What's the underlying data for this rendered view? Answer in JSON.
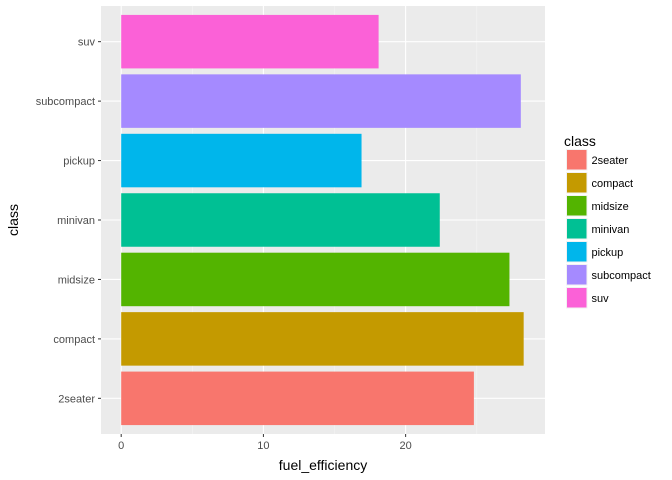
{
  "chart_data": {
    "type": "bar",
    "orientation": "horizontal",
    "categories": [
      "2seater",
      "compact",
      "midsize",
      "minivan",
      "pickup",
      "subcompact",
      "suv"
    ],
    "values": [
      24.8,
      28.3,
      27.3,
      22.4,
      16.9,
      28.1,
      18.1
    ],
    "colors": [
      "#F8766D",
      "#C49A00",
      "#53B400",
      "#00C094",
      "#00B6EB",
      "#A58AFF",
      "#FB61D7"
    ],
    "xlabel": "fuel_efficiency",
    "ylabel": "class",
    "xlim": [
      -1.42,
      29.8
    ],
    "xticks": [
      0,
      10,
      20
    ],
    "legend": {
      "title": "class",
      "position": "right",
      "entries": [
        "2seater",
        "compact",
        "midsize",
        "minivan",
        "pickup",
        "subcompact",
        "suv"
      ]
    },
    "grid": true,
    "panel_background": "#EBEBEB"
  }
}
